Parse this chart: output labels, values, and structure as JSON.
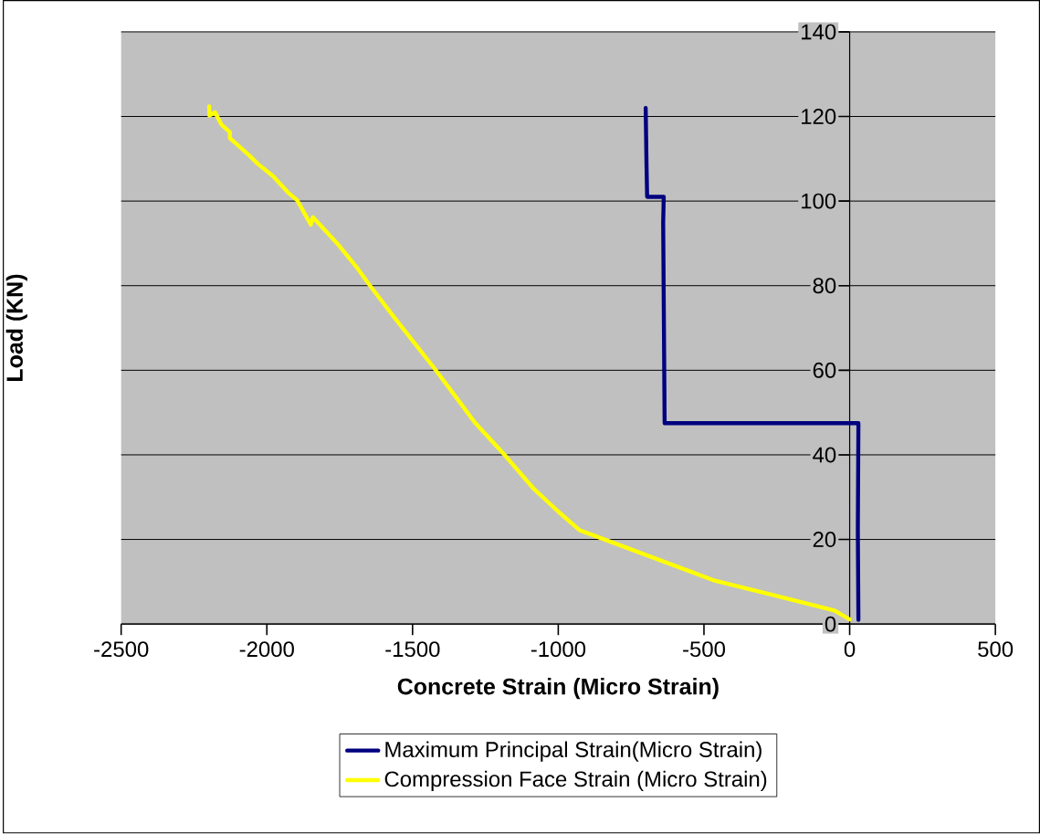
{
  "chart_data": {
    "type": "line",
    "xlabel": "Concrete Strain (Micro Strain)",
    "ylabel": "Load (KN)",
    "xlim": [
      -2500,
      500
    ],
    "ylim": [
      0,
      140
    ],
    "xticks": [
      -2500,
      -2000,
      -1500,
      -1000,
      -500,
      0,
      500
    ],
    "yticks": [
      0,
      20,
      40,
      60,
      80,
      100,
      120,
      140
    ],
    "grid": "y",
    "legend": "bottom",
    "marker": "none",
    "line_style": "solid",
    "series": [
      {
        "name": "Maximum Principal Strain(Micro Strain)",
        "color": "#000080",
        "x": [
          30,
          28,
          30,
          -635,
          -640,
          -638,
          -695,
          -697,
          -700
        ],
        "values": [
          1,
          22,
          47.5,
          47.5,
          95,
          101,
          101,
          108,
          122
        ]
      },
      {
        "name": "Compression Face Strain (Micro Strain)",
        "color": "#ffff00",
        "x": [
          0,
          -52,
          -260,
          -469,
          -927,
          -1000,
          -1083,
          -1187,
          -1287,
          -1333,
          -1427,
          -1563,
          -1646,
          -1688,
          -1760,
          -1842,
          -1849,
          -1896,
          -1927,
          -1979,
          -2031,
          -2062,
          -2127,
          -2127,
          -2156,
          -2178,
          -2197,
          -2198
        ],
        "values": [
          1.1,
          3.2,
          6.8,
          10.4,
          22.2,
          26.6,
          31.9,
          40.2,
          47.7,
          52,
          60.6,
          72.5,
          80,
          84,
          90.1,
          96.2,
          94.4,
          100.2,
          102,
          105.9,
          108.8,
          110.9,
          114.9,
          116.3,
          118.1,
          121,
          120.2,
          122.4
        ]
      }
    ]
  }
}
